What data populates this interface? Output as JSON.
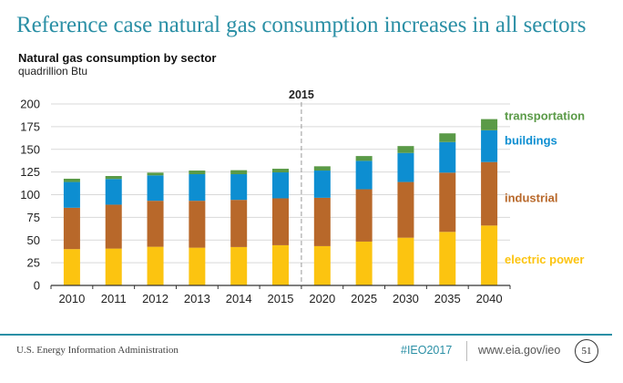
{
  "slide": {
    "title": "Reference case natural gas consumption increases in all sectors",
    "footer_org": "U.S. Energy Information Administration",
    "footer_hashtag": "#IEO2017",
    "footer_url": "www.eia.gov/ieo",
    "page_number": "51"
  },
  "colors": {
    "electric_power": "#fcc410",
    "industrial": "#b8682a",
    "buildings": "#0d8ed1",
    "transportation": "#5a9a47",
    "accent": "#2a8fa5"
  },
  "chart_data": {
    "type": "bar",
    "stacked": true,
    "title": "Natural gas consumption by sector",
    "subtitle": "quadrillion Btu",
    "xlabel": "",
    "ylabel": "quadrillion Btu",
    "ylim": [
      0,
      200
    ],
    "yticks": [
      0,
      25,
      50,
      75,
      100,
      125,
      150,
      175,
      200
    ],
    "grid": true,
    "legend_placement": "right",
    "categories": [
      "2010",
      "2011",
      "2012",
      "2013",
      "2014",
      "2015",
      "2020",
      "2025",
      "2030",
      "2035",
      "2040"
    ],
    "annotation": {
      "label": "2015",
      "type": "dashed-vertical-divider",
      "between": [
        "2015",
        "2020"
      ]
    },
    "series": [
      {
        "name": "electric power",
        "color_key": "electric_power",
        "values": [
          40.0,
          40.6,
          42.6,
          41.6,
          42.3,
          44.3,
          43.3,
          48.3,
          52.6,
          59.0,
          66.0
        ]
      },
      {
        "name": "industrial",
        "color_key": "industrial",
        "values": [
          45.6,
          48.4,
          50.7,
          51.7,
          52.0,
          51.7,
          53.3,
          57.7,
          61.4,
          65.3,
          70.0
        ]
      },
      {
        "name": "buildings",
        "color_key": "buildings",
        "values": [
          28.4,
          28.3,
          28.0,
          29.3,
          28.3,
          28.6,
          30.0,
          31.3,
          32.0,
          33.7,
          35.0
        ]
      },
      {
        "name": "transportation",
        "color_key": "transportation",
        "values": [
          3.6,
          3.3,
          3.0,
          4.0,
          4.4,
          4.0,
          4.7,
          5.3,
          7.6,
          9.6,
          12.3
        ]
      }
    ]
  }
}
